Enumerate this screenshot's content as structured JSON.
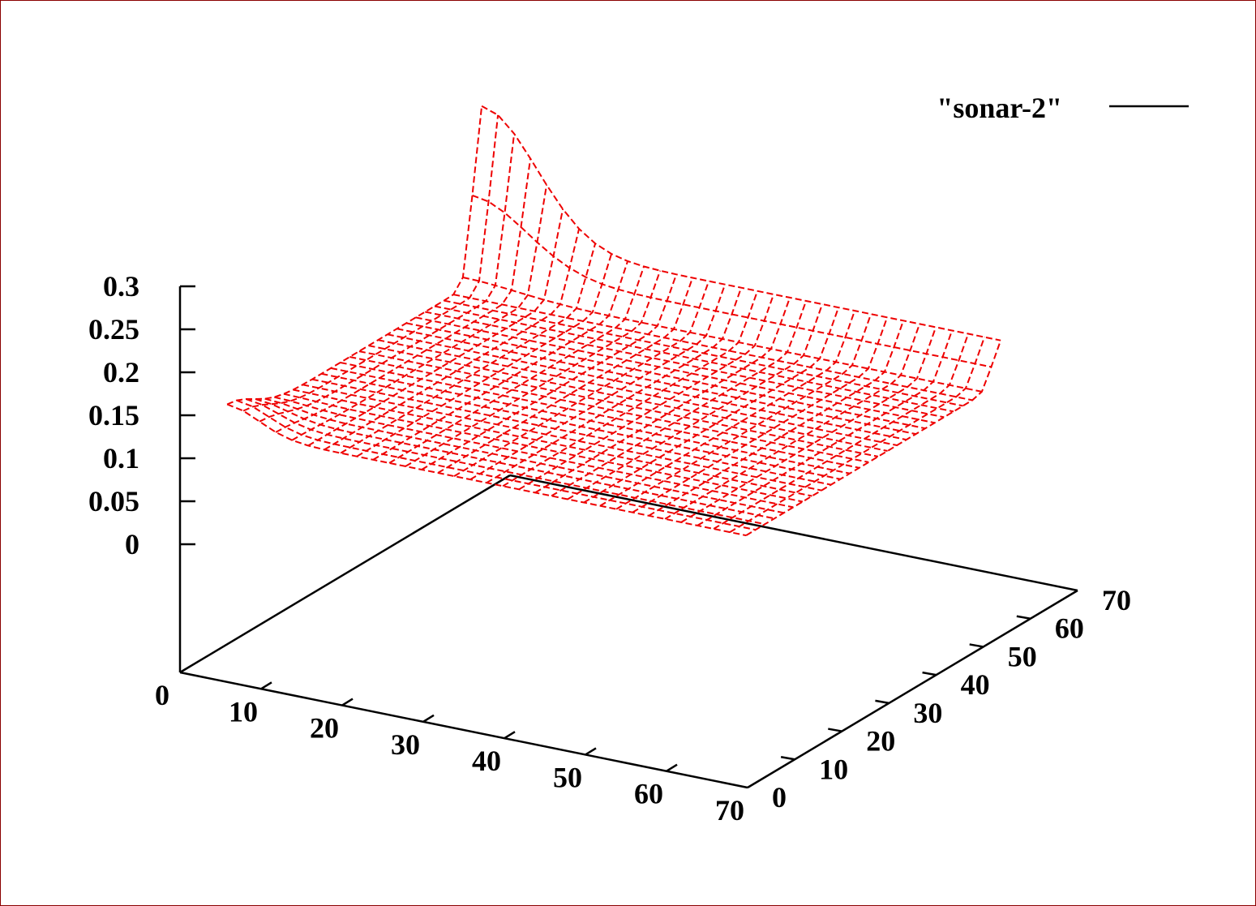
{
  "chart_data": {
    "type": "surface",
    "legend": {
      "label": "\"sonar-2\"",
      "placement": "top-right",
      "line_color": "#000000"
    },
    "series": [
      {
        "name": "\"sonar-2\"",
        "color": "#ee0000",
        "style": "dashed wireframe"
      }
    ],
    "x_axis": {
      "range": [
        0,
        70
      ],
      "ticks": [
        "0",
        "10",
        "20",
        "30",
        "40",
        "50",
        "60",
        "70"
      ]
    },
    "y_axis": {
      "range": [
        0,
        70
      ],
      "ticks": [
        "0",
        "10",
        "20",
        "30",
        "40",
        "50",
        "60",
        "70"
      ]
    },
    "z_axis": {
      "range": [
        0,
        0.3
      ],
      "ticks": [
        "0",
        "0.05",
        "0.1",
        "0.15",
        "0.2",
        "0.25",
        "0.3"
      ]
    },
    "surface": {
      "data_x_range": [
        0,
        64
      ],
      "data_y_range": [
        10,
        64
      ],
      "grid_step": 2,
      "baseline_z": 0.1,
      "corner_peaks": [
        {
          "x": 0,
          "y": 64,
          "z": 0.3
        },
        {
          "x": 0,
          "y": 10,
          "z": 0.13
        }
      ],
      "ridge_along_y_max": 0.15
    },
    "colors": {
      "frame": "#8b0000",
      "surface": "#ee0000",
      "axes": "#000000"
    }
  }
}
